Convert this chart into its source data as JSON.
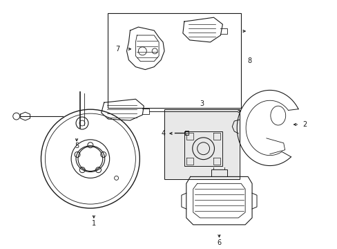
{
  "background_color": "#ffffff",
  "line_color": "#1a1a1a",
  "figsize": [
    4.89,
    3.6
  ],
  "dpi": 100,
  "gray_fill": "#e8e8e8"
}
